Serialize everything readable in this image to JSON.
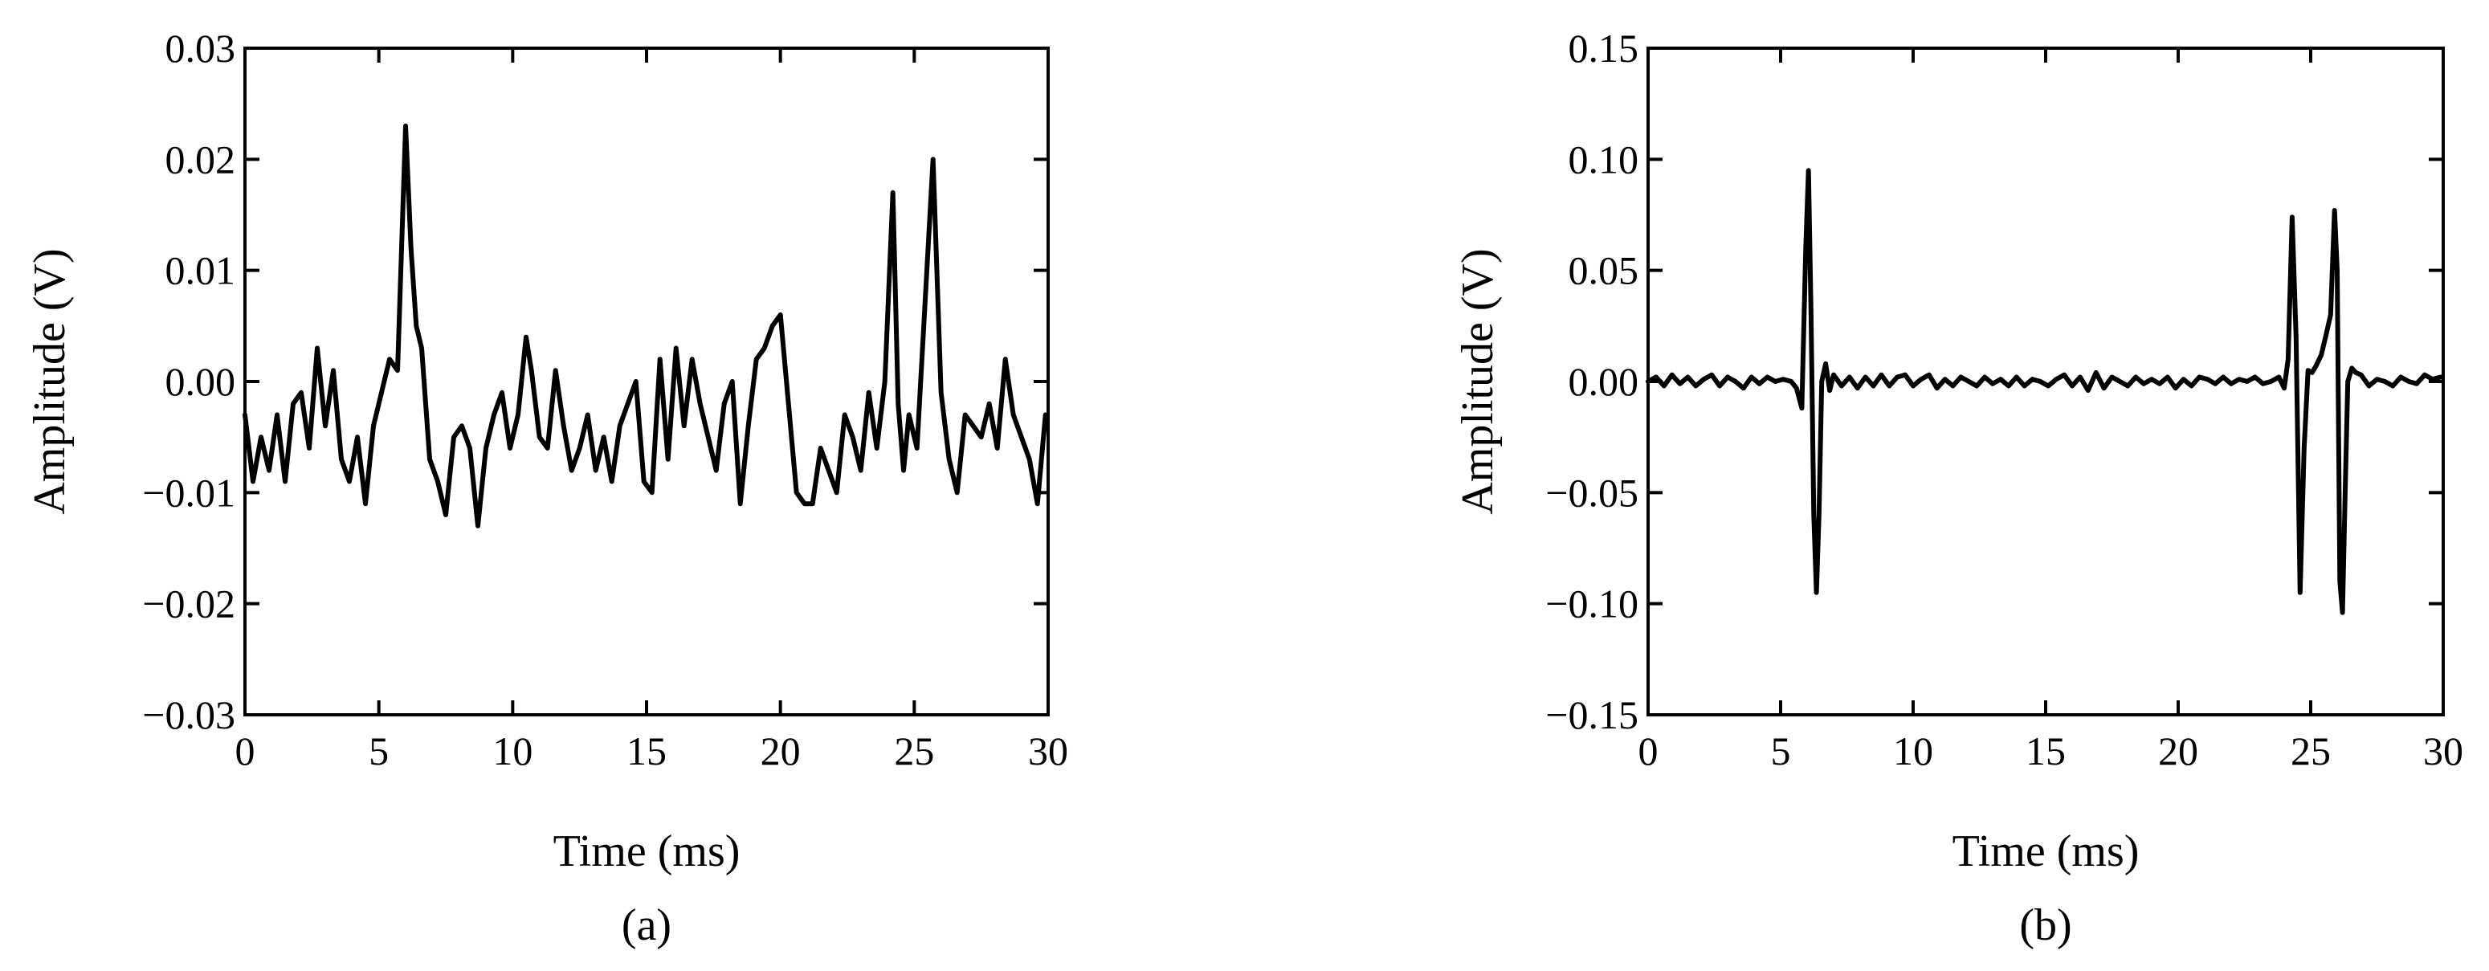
{
  "colors": {
    "line": "#000000",
    "axes": "#000000",
    "background": "#ffffff"
  },
  "chart_data": [
    {
      "type": "line",
      "panel": "(a)",
      "xlabel": "Time (ms)",
      "ylabel": "Amplitude (V)",
      "xlim": [
        0,
        30
      ],
      "ylim": [
        -0.03,
        0.03
      ],
      "x_ticks": [
        0,
        5,
        10,
        15,
        20,
        25,
        30
      ],
      "x_tick_labels": [
        "0",
        "5",
        "10",
        "15",
        "20",
        "25",
        "30"
      ],
      "y_ticks": [
        -0.03,
        -0.02,
        -0.01,
        0,
        0.01,
        0.02,
        0.03
      ],
      "y_tick_labels": [
        "−0.03",
        "−0.02",
        "−0.01",
        "0.00",
        "0.01",
        "0.02",
        "0.03"
      ],
      "grid": false,
      "series": [
        {
          "x": [
            0,
            0.3,
            0.6,
            0.9,
            1.2,
            1.5,
            1.8,
            2.1,
            2.4,
            2.7,
            3.0,
            3.3,
            3.6,
            3.9,
            4.2,
            4.5,
            4.8,
            5.1,
            5.4,
            5.7,
            6.0,
            6.2,
            6.4,
            6.6,
            6.9,
            7.2,
            7.5,
            7.8,
            8.1,
            8.4,
            8.7,
            9.0,
            9.3,
            9.6,
            9.9,
            10.2,
            10.5,
            10.7,
            11.0,
            11.3,
            11.6,
            11.9,
            12.2,
            12.5,
            12.8,
            13.1,
            13.4,
            13.7,
            14.0,
            14.3,
            14.6,
            14.9,
            15.2,
            15.5,
            15.8,
            16.1,
            16.4,
            16.7,
            17.0,
            17.3,
            17.6,
            17.9,
            18.2,
            18.5,
            18.8,
            19.1,
            19.4,
            19.7,
            20.0,
            20.3,
            20.6,
            20.9,
            21.2,
            21.5,
            21.8,
            22.1,
            22.4,
            22.7,
            23.0,
            23.3,
            23.6,
            23.9,
            24.2,
            24.4,
            24.6,
            24.8,
            25.1,
            25.4,
            25.7,
            26.0,
            26.3,
            26.6,
            26.9,
            27.2,
            27.5,
            27.8,
            28.1,
            28.4,
            28.7,
            29.0,
            29.3,
            29.6,
            29.9
          ],
          "y": [
            -0.003,
            -0.009,
            -0.005,
            -0.008,
            -0.003,
            -0.009,
            -0.002,
            -0.001,
            -0.006,
            0.003,
            -0.004,
            0.001,
            -0.007,
            -0.009,
            -0.005,
            -0.011,
            -0.004,
            -0.001,
            0.002,
            0.001,
            0.023,
            0.012,
            0.005,
            0.003,
            -0.007,
            -0.009,
            -0.012,
            -0.005,
            -0.004,
            -0.006,
            -0.013,
            -0.006,
            -0.003,
            -0.001,
            -0.006,
            -0.003,
            0.004,
            0.001,
            -0.005,
            -0.006,
            0.001,
            -0.004,
            -0.008,
            -0.006,
            -0.003,
            -0.008,
            -0.005,
            -0.009,
            -0.004,
            -0.002,
            0.0,
            -0.009,
            -0.01,
            0.002,
            -0.007,
            0.003,
            -0.004,
            0.002,
            -0.002,
            -0.005,
            -0.008,
            -0.002,
            0.0,
            -0.011,
            -0.004,
            0.002,
            0.003,
            0.005,
            0.006,
            -0.002,
            -0.01,
            -0.011,
            -0.011,
            -0.006,
            -0.008,
            -0.01,
            -0.003,
            -0.005,
            -0.008,
            -0.001,
            -0.006,
            0.0,
            0.017,
            -0.002,
            -0.008,
            -0.003,
            -0.006,
            0.007,
            0.02,
            -0.001,
            -0.007,
            -0.01,
            -0.003,
            -0.004,
            -0.005,
            -0.002,
            -0.006,
            0.002,
            -0.003,
            -0.005,
            -0.007,
            -0.011,
            -0.003
          ]
        }
      ]
    },
    {
      "type": "line",
      "panel": "(b)",
      "xlabel": "Time  (ms)",
      "ylabel": "Amplitude (V)",
      "xlim": [
        0,
        30
      ],
      "ylim": [
        -0.15,
        0.15
      ],
      "x_ticks": [
        0,
        5,
        10,
        15,
        20,
        25,
        30
      ],
      "x_tick_labels": [
        "0",
        "5",
        "10",
        "15",
        "20",
        "25",
        "30"
      ],
      "y_ticks": [
        -0.15,
        -0.1,
        -0.05,
        0,
        0.05,
        0.1,
        0.15
      ],
      "y_tick_labels": [
        "−0.15",
        "−0.10",
        "−0.05",
        "0.00",
        "0.05",
        "0.10",
        "0.15"
      ],
      "grid": false,
      "series": [
        {
          "x": [
            0,
            0.3,
            0.6,
            0.9,
            1.2,
            1.5,
            1.8,
            2.1,
            2.4,
            2.7,
            3.0,
            3.3,
            3.6,
            3.9,
            4.2,
            4.5,
            4.8,
            5.1,
            5.4,
            5.6,
            5.8,
            5.95,
            6.05,
            6.15,
            6.25,
            6.35,
            6.45,
            6.55,
            6.7,
            6.85,
            7.0,
            7.3,
            7.6,
            7.9,
            8.2,
            8.5,
            8.8,
            9.1,
            9.4,
            9.7,
            10.0,
            10.3,
            10.6,
            10.9,
            11.2,
            11.5,
            11.8,
            12.1,
            12.4,
            12.7,
            13.0,
            13.3,
            13.6,
            13.9,
            14.2,
            14.5,
            14.8,
            15.1,
            15.4,
            15.7,
            16.0,
            16.3,
            16.6,
            16.9,
            17.2,
            17.5,
            17.8,
            18.1,
            18.4,
            18.7,
            19.0,
            19.3,
            19.6,
            19.9,
            20.2,
            20.5,
            20.8,
            21.1,
            21.4,
            21.7,
            22.0,
            22.3,
            22.6,
            22.9,
            23.2,
            23.5,
            23.8,
            24.0,
            24.15,
            24.3,
            24.45,
            24.6,
            24.75,
            24.9,
            25.05,
            25.2,
            25.4,
            25.6,
            25.75,
            25.9,
            26.0,
            26.1,
            26.2,
            26.3,
            26.4,
            26.55,
            26.7,
            26.9,
            27.2,
            27.5,
            27.8,
            28.1,
            28.4,
            28.7,
            29.0,
            29.3,
            29.6,
            29.9
          ],
          "y": [
            0.0,
            0.002,
            -0.002,
            0.003,
            -0.001,
            0.002,
            -0.002,
            0.001,
            0.003,
            -0.002,
            0.002,
            0.0,
            -0.003,
            0.002,
            -0.001,
            0.002,
            0.0,
            0.001,
            0.0,
            -0.003,
            -0.012,
            0.06,
            0.095,
            0.03,
            -0.06,
            -0.095,
            -0.06,
            0.0,
            0.008,
            -0.004,
            0.003,
            -0.002,
            0.002,
            -0.003,
            0.002,
            -0.002,
            0.003,
            -0.002,
            0.002,
            0.003,
            -0.002,
            0.001,
            0.003,
            -0.003,
            0.001,
            -0.002,
            0.002,
            0.0,
            -0.002,
            0.002,
            -0.001,
            0.001,
            -0.002,
            0.002,
            -0.002,
            0.001,
            0.0,
            -0.002,
            0.001,
            0.003,
            -0.002,
            0.002,
            -0.004,
            0.004,
            -0.003,
            0.002,
            0.0,
            -0.002,
            0.002,
            -0.001,
            0.001,
            -0.001,
            0.002,
            -0.003,
            0.001,
            -0.002,
            0.002,
            0.001,
            -0.001,
            0.002,
            -0.001,
            0.001,
            0.0,
            0.002,
            -0.001,
            0.0,
            0.002,
            -0.003,
            0.01,
            0.074,
            0.02,
            -0.095,
            -0.03,
            0.005,
            0.004,
            0.007,
            0.012,
            0.022,
            0.03,
            0.077,
            0.05,
            -0.09,
            -0.104,
            -0.05,
            0.0,
            0.006,
            0.004,
            0.003,
            -0.002,
            0.001,
            0.0,
            -0.002,
            0.002,
            0.0,
            -0.001,
            0.003,
            0.001,
            0.002
          ]
        }
      ]
    }
  ]
}
